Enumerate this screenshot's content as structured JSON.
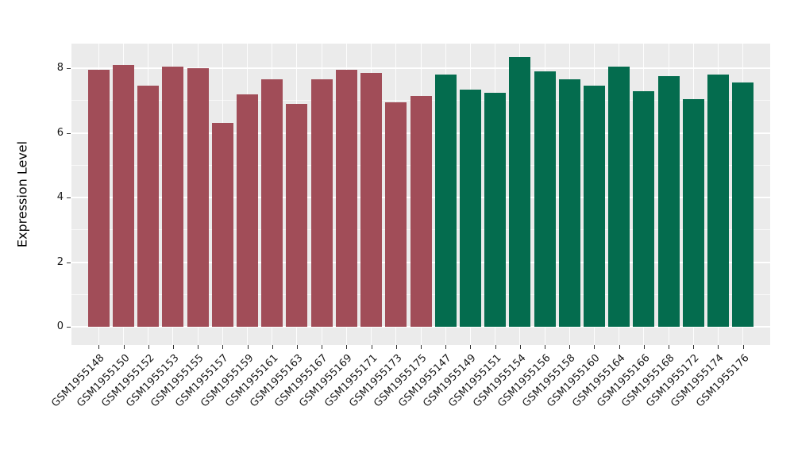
{
  "chart_data": {
    "type": "bar",
    "title": "",
    "xlabel": "",
    "ylabel": "Expression Level",
    "ylim": [
      0,
      8.76
    ],
    "yticks": [
      0,
      2,
      4,
      6,
      8
    ],
    "yticks_minor": [
      1,
      3,
      5,
      7
    ],
    "grid": true,
    "legend_position": "none",
    "panel_background": "#EBEBEB",
    "grid_color": "#FFFFFF",
    "tick_color": "#333333",
    "tick_label_color": "#1A1A1A",
    "group_colors": {
      "groupA": "#A14D58",
      "groupB": "#046C4E"
    },
    "bars": [
      {
        "label": "GSM1955148",
        "value": 7.95,
        "group": "groupA"
      },
      {
        "label": "GSM1955150",
        "value": 8.1,
        "group": "groupA"
      },
      {
        "label": "GSM1955152",
        "value": 7.45,
        "group": "groupA"
      },
      {
        "label": "GSM1955153",
        "value": 8.05,
        "group": "groupA"
      },
      {
        "label": "GSM1955155",
        "value": 8.0,
        "group": "groupA"
      },
      {
        "label": "GSM1955157",
        "value": 6.3,
        "group": "groupA"
      },
      {
        "label": "GSM1955159",
        "value": 7.2,
        "group": "groupA"
      },
      {
        "label": "GSM1955161",
        "value": 7.65,
        "group": "groupA"
      },
      {
        "label": "GSM1955163",
        "value": 6.9,
        "group": "groupA"
      },
      {
        "label": "GSM1955167",
        "value": 7.65,
        "group": "groupA"
      },
      {
        "label": "GSM1955169",
        "value": 7.95,
        "group": "groupA"
      },
      {
        "label": "GSM1955171",
        "value": 7.85,
        "group": "groupA"
      },
      {
        "label": "GSM1955173",
        "value": 6.95,
        "group": "groupA"
      },
      {
        "label": "GSM1955175",
        "value": 7.15,
        "group": "groupA"
      },
      {
        "label": "GSM1955147",
        "value": 7.8,
        "group": "groupB"
      },
      {
        "label": "GSM1955149",
        "value": 7.35,
        "group": "groupB"
      },
      {
        "label": "GSM1955151",
        "value": 7.25,
        "group": "groupB"
      },
      {
        "label": "GSM1955154",
        "value": 8.35,
        "group": "groupB"
      },
      {
        "label": "GSM1955156",
        "value": 7.9,
        "group": "groupB"
      },
      {
        "label": "GSM1955158",
        "value": 7.65,
        "group": "groupB"
      },
      {
        "label": "GSM1955160",
        "value": 7.45,
        "group": "groupB"
      },
      {
        "label": "GSM1955164",
        "value": 8.05,
        "group": "groupB"
      },
      {
        "label": "GSM1955166",
        "value": 7.3,
        "group": "groupB"
      },
      {
        "label": "GSM1955168",
        "value": 7.75,
        "group": "groupB"
      },
      {
        "label": "GSM1955172",
        "value": 7.05,
        "group": "groupB"
      },
      {
        "label": "GSM1955174",
        "value": 7.8,
        "group": "groupB"
      },
      {
        "label": "GSM1955176",
        "value": 7.55,
        "group": "groupB"
      }
    ]
  }
}
